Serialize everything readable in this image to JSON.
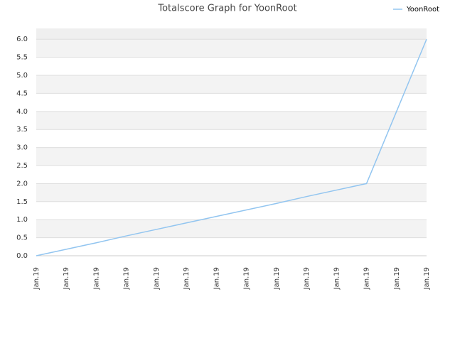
{
  "chart_data": {
    "type": "line",
    "title": "Totalscore Graph for YoonRoot",
    "categories": [
      "Jan.19",
      "Jan.19",
      "Jan.19",
      "Jan.19",
      "Jan.19",
      "Jan.19",
      "Jan.19",
      "Jan.19",
      "Jan.19",
      "Jan.19",
      "Jan.19",
      "Jan.19",
      "Jan.19",
      "Jan.19"
    ],
    "series": [
      {
        "name": "YoonRoot",
        "color": "#92c5f0",
        "values": [
          0,
          0.18,
          0.36,
          0.55,
          0.73,
          0.91,
          1.09,
          1.27,
          1.45,
          1.64,
          1.82,
          2.0,
          4.0,
          6.0
        ]
      }
    ],
    "ylim": [
      0,
      6.3
    ],
    "yticks": [
      {
        "value": 0,
        "label": "0.0"
      },
      0.5,
      {
        "value": 1,
        "label": "1.0"
      },
      1.5,
      {
        "value": 2,
        "label": "2.0"
      },
      2.5,
      {
        "value": 3,
        "label": "3.0"
      },
      3.5,
      {
        "value": 4,
        "label": "4.0"
      },
      4.5,
      {
        "value": 5,
        "label": "5.0"
      },
      5.5,
      {
        "value": 6,
        "label": "6.0"
      }
    ],
    "grid": true,
    "legend": "top-right"
  }
}
